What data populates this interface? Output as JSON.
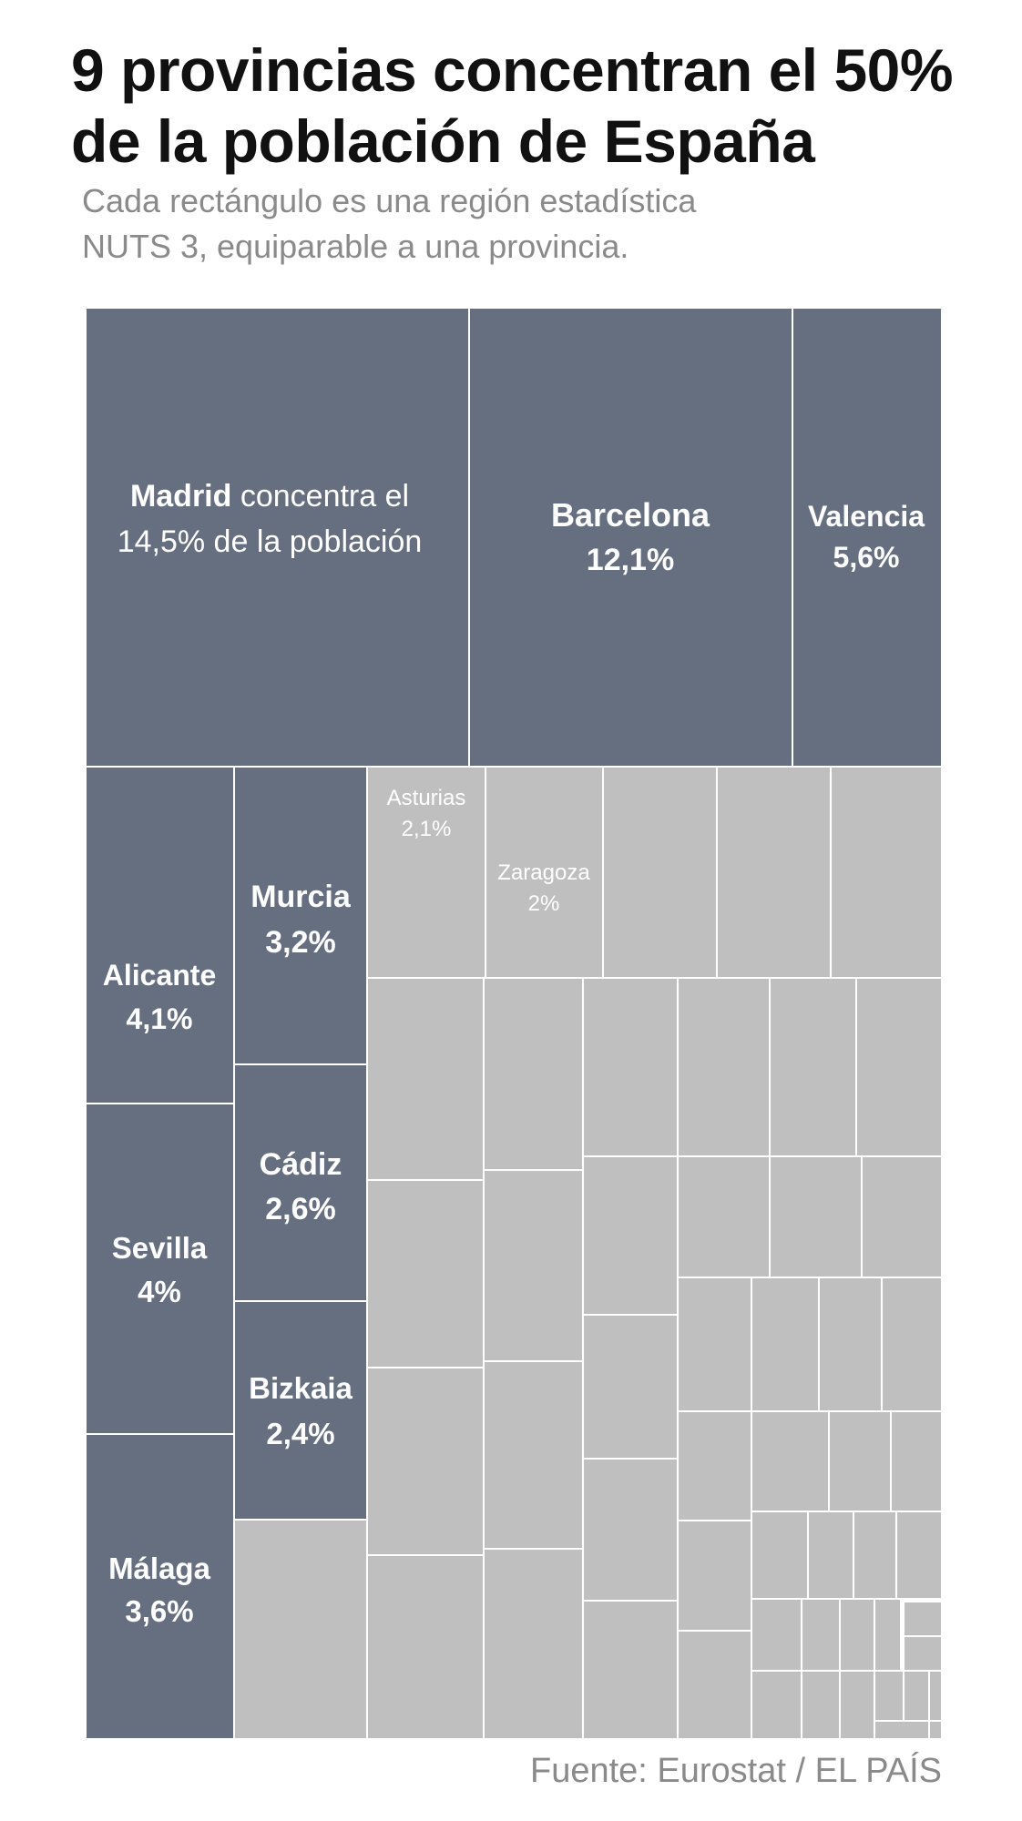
{
  "title": {
    "line1": "9 provincias concentran el 50%",
    "line2": "de la población de España"
  },
  "subtitle": {
    "line1": "Cada rectángulo es una región estadística",
    "line2": "NUTS 3, equiparable a una provincia."
  },
  "source": "Fuente: Eurostat / EL PAÍS",
  "colors": {
    "highlight": "#666f80",
    "other": "#bfbfbf",
    "border": "#ffffff",
    "label_on_dark": "#ffffff",
    "label_on_light": "#ffffff"
  },
  "chart_data": {
    "type": "treemap",
    "title": "9 provincias concentran el 50% de la población de España",
    "unit": "% de la población",
    "labeled": [
      {
        "name": "Madrid",
        "value": 14.5,
        "label": "14,5%",
        "prefix": "Madrid",
        "text": " concentra el",
        "text2": "14,5% de la población",
        "group": "top"
      },
      {
        "name": "Barcelona",
        "value": 12.1,
        "label": "12,1%",
        "group": "top"
      },
      {
        "name": "Valencia",
        "value": 5.6,
        "label": "5,6%",
        "group": "top"
      },
      {
        "name": "Alicante",
        "value": 4.1,
        "label": "4,1%",
        "group": "top"
      },
      {
        "name": "Sevilla",
        "value": 4.0,
        "label": "4%",
        "group": "top"
      },
      {
        "name": "Málaga",
        "value": 3.6,
        "label": "3,6%",
        "group": "top"
      },
      {
        "name": "Murcia",
        "value": 3.2,
        "label": "3,2%",
        "group": "top"
      },
      {
        "name": "Cádiz",
        "value": 2.6,
        "label": "2,6%",
        "group": "top"
      },
      {
        "name": "Bizkaia",
        "value": 2.4,
        "label": "2,4%",
        "group": "top"
      },
      {
        "name": "Asturias",
        "value": 2.1,
        "label": "2,1%",
        "group": "other"
      },
      {
        "name": "Zaragoza",
        "value": 2.0,
        "label": "2%",
        "group": "other"
      }
    ],
    "unlabeled_region_values": [
      2.3,
      1.9,
      1.9,
      1.9,
      2.1,
      2.0,
      2.0,
      1.9,
      1.8,
      1.8,
      2.1,
      2.0,
      2.0,
      1.6,
      1.6,
      1.6,
      1.5,
      1.5,
      1.2,
      1.5,
      1.2,
      1.2,
      1.2,
      1.2,
      1.1,
      1.0,
      1.0,
      0.85,
      0.85,
      0.85,
      0.8,
      0.75,
      0.75,
      0.7,
      0.6,
      0.6,
      0.5,
      0.4,
      0.4,
      0.35,
      0.3,
      0.25,
      0.1,
      0.1
    ]
  }
}
